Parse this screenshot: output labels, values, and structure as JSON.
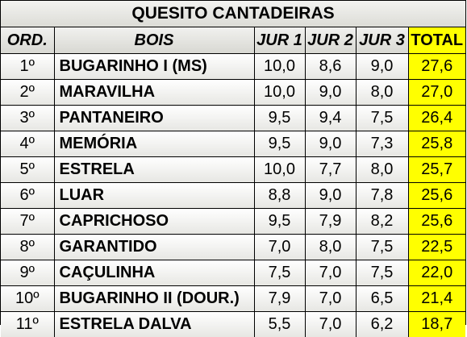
{
  "title": "QUESITO CANTADEIRAS",
  "headers": {
    "ord": "ORD.",
    "bois": "BOIS",
    "jur1": "JUR 1",
    "jur2": "JUR 2",
    "jur3": "JUR 3",
    "total": "TOTAL"
  },
  "rows": [
    {
      "ord": "1º",
      "bois": "BUGARINHO I (MS)",
      "jur1": "10,0",
      "jur2": "8,6",
      "jur3": "9,0",
      "total": "27,6"
    },
    {
      "ord": "2º",
      "bois": "MARAVILHA",
      "jur1": "10,0",
      "jur2": "9,0",
      "jur3": "8,0",
      "total": "27,0"
    },
    {
      "ord": "3º",
      "bois": "PANTANEIRO",
      "jur1": "9,5",
      "jur2": "9,4",
      "jur3": "7,5",
      "total": "26,4"
    },
    {
      "ord": "4º",
      "bois": "MEMÓRIA",
      "jur1": "9,5",
      "jur2": "9,0",
      "jur3": "7,3",
      "total": "25,8"
    },
    {
      "ord": "5º",
      "bois": "ESTRELA",
      "jur1": "10,0",
      "jur2": "7,7",
      "jur3": "8,0",
      "total": "25,7"
    },
    {
      "ord": "6º",
      "bois": "LUAR",
      "jur1": "8,8",
      "jur2": "9,0",
      "jur3": "7,8",
      "total": "25,6"
    },
    {
      "ord": "7º",
      "bois": "CAPRICHOSO",
      "jur1": "9,5",
      "jur2": "7,9",
      "jur3": "8,2",
      "total": "25,6"
    },
    {
      "ord": "8º",
      "bois": "GARANTIDO",
      "jur1": "7,0",
      "jur2": "8,0",
      "jur3": "7,5",
      "total": "22,5"
    },
    {
      "ord": "9º",
      "bois": "CAÇULINHA",
      "jur1": "7,5",
      "jur2": "7,0",
      "jur3": "7,5",
      "total": "22,0"
    },
    {
      "ord": "10º",
      "bois": "BUGARINHO II (DOUR.)",
      "jur1": "7,9",
      "jur2": "7,0",
      "jur3": "6,5",
      "total": "21,4"
    },
    {
      "ord": "11º",
      "bois": "ESTRELA DALVA",
      "jur1": "5,5",
      "jur2": "7,0",
      "jur3": "6,2",
      "total": "18,7"
    }
  ],
  "colors": {
    "total_highlight": "#ffff00",
    "header_gray": "#dcdcd6",
    "border": "#000000"
  }
}
